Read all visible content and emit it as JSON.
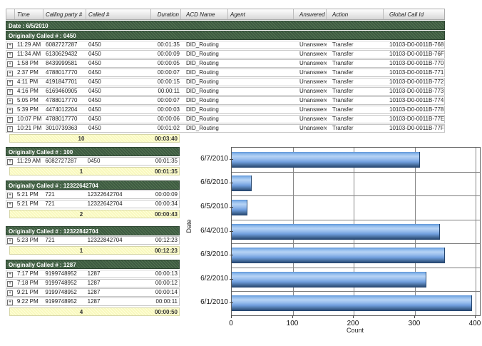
{
  "table": {
    "columns": [
      "",
      "Time",
      "Calling party #",
      "Called #",
      "Duration",
      "ACD Name",
      "Agent",
      "Answered",
      "Action",
      "Global Call Id"
    ],
    "date_header": "Date : 6/5/2010",
    "group_header": "Originally Called # : 0450",
    "rows": [
      {
        "time": "11:29 AM",
        "calling": "6082727287",
        "called": "0450",
        "duration": "00:01:35",
        "acd": "DID_Routing",
        "agent": "",
        "answered": "Unanswered",
        "action": "Transfer",
        "global_id": "10103-D0-0011B-768"
      },
      {
        "time": "11:34 AM",
        "calling": "6130629432",
        "called": "0450",
        "duration": "00:00:09",
        "acd": "DID_Routing",
        "agent": "",
        "answered": "Unanswered",
        "action": "Transfer",
        "global_id": "10103-D0-0011B-76F"
      },
      {
        "time": "1:58 PM",
        "calling": "8439999581",
        "called": "0450",
        "duration": "00:00:05",
        "acd": "DID_Routing",
        "agent": "",
        "answered": "Unanswered",
        "action": "Transfer",
        "global_id": "10103-D0-0011B-770"
      },
      {
        "time": "2:37 PM",
        "calling": "4788017770",
        "called": "0450",
        "duration": "00:00:07",
        "acd": "DID_Routing",
        "agent": "",
        "answered": "Unanswered",
        "action": "Transfer",
        "global_id": "10103-D0-0011B-771"
      },
      {
        "time": "4:11 PM",
        "calling": "4191847701",
        "called": "0450",
        "duration": "00:00:15",
        "acd": "DID_Routing",
        "agent": "",
        "answered": "Unanswered",
        "action": "Transfer",
        "global_id": "10103-D0-0011B-772"
      },
      {
        "time": "4:16 PM",
        "calling": "6169460905",
        "called": "0450",
        "duration": "00:00:11",
        "acd": "DID_Routing",
        "agent": "",
        "answered": "Unanswered",
        "action": "Transfer",
        "global_id": "10103-D0-0011B-773"
      },
      {
        "time": "5:05 PM",
        "calling": "4788017770",
        "called": "0450",
        "duration": "00:00:07",
        "acd": "DID_Routing",
        "agent": "",
        "answered": "Unanswered",
        "action": "Transfer",
        "global_id": "10103-D0-0011B-774"
      },
      {
        "time": "5:39 PM",
        "calling": "4474012204",
        "called": "0450",
        "duration": "00:00:03",
        "acd": "DID_Routing",
        "agent": "",
        "answered": "Unanswered",
        "action": "Transfer",
        "global_id": "10103-D0-0011B-778"
      },
      {
        "time": "10:07 PM",
        "calling": "4788017770",
        "called": "0450",
        "duration": "00:00:06",
        "acd": "DID_Routing",
        "agent": "",
        "answered": "Unanswered",
        "action": "Transfer",
        "global_id": "10103-D0-0011B-77E"
      },
      {
        "time": "10:21 PM",
        "calling": "3010739363",
        "called": "0450",
        "duration": "00:01:02",
        "acd": "DID_Routing",
        "agent": "",
        "answered": "Unanswered",
        "action": "Transfer",
        "global_id": "10103-D0-0011B-77F"
      }
    ],
    "summary": {
      "count": "10",
      "total": "00:03:40"
    }
  },
  "groups": [
    {
      "header": "Originally Called # : 100",
      "rows": [
        {
          "time": "11:29 AM",
          "calling": "6082727287",
          "called": "0450",
          "duration": "00:01:35"
        }
      ],
      "summary": {
        "count": "1",
        "total": "00:01:35"
      }
    },
    {
      "header": "Originally Called # : 12322642704",
      "rows": [
        {
          "time": "5:21 PM",
          "calling": "721",
          "called": "12322642704",
          "duration": "00:00:09"
        },
        {
          "time": "5:21 PM",
          "calling": "721",
          "called": "12322642704",
          "duration": "00:00:34"
        }
      ],
      "summary": {
        "count": "2",
        "total": "00:00:43"
      }
    },
    {
      "header": "Originally Called # : 12322842704",
      "rows": [
        {
          "time": "5:23 PM",
          "calling": "721",
          "called": "12322842704",
          "duration": "00:12:23"
        }
      ],
      "summary": {
        "count": "1",
        "total": "00:12:23"
      }
    },
    {
      "header": "Originally Called # : 1287",
      "rows": [
        {
          "time": "7:17 PM",
          "calling": "9199748952",
          "called": "1287",
          "duration": "00:00:13"
        },
        {
          "time": "7:18 PM",
          "calling": "9199748952",
          "called": "1287",
          "duration": "00:00:12"
        },
        {
          "time": "9:21 PM",
          "calling": "9199748952",
          "called": "1287",
          "duration": "00:00:14"
        },
        {
          "time": "9:22 PM",
          "calling": "9199748952",
          "called": "1287",
          "duration": "00:00:11"
        }
      ],
      "summary": {
        "count": "4",
        "total": "00:00:50"
      }
    }
  ],
  "chart_data": {
    "type": "bar",
    "orientation": "horizontal",
    "title": "",
    "categories": [
      "6/7/2010",
      "6/6/2010",
      "6/5/2010",
      "6/4/2010",
      "6/3/2010",
      "6/2/2010",
      "6/1/2010"
    ],
    "values": [
      308,
      32,
      25,
      340,
      348,
      318,
      393
    ],
    "xlabel": "Count",
    "ylabel": "Date",
    "xlim": [
      0,
      400
    ],
    "xticks": [
      0,
      100,
      200,
      300,
      400
    ],
    "grid": true,
    "legend": false,
    "bar_color": "#7aa9e2"
  }
}
